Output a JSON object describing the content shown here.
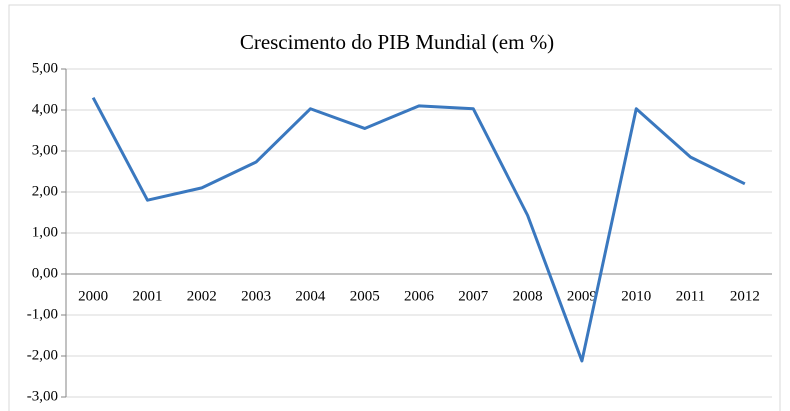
{
  "chart_data": {
    "type": "line",
    "title": "Crescimento do PIB Mundial (em %)",
    "categories": [
      "2000",
      "2001",
      "2002",
      "2003",
      "2004",
      "2005",
      "2006",
      "2007",
      "2008",
      "2009",
      "2010",
      "2011",
      "2012"
    ],
    "values": [
      4.3,
      1.8,
      2.1,
      2.73,
      4.03,
      3.55,
      4.1,
      4.03,
      1.43,
      -2.12,
      4.03,
      2.85,
      2.2
    ],
    "color": "#3a78bf",
    "ylim": [
      -3,
      5
    ],
    "yticks": [
      {
        "value": -3,
        "label": "-3,00"
      },
      {
        "value": -2,
        "label": "-2,00"
      },
      {
        "value": -1,
        "label": "-1,00"
      },
      {
        "value": 0,
        "label": "0,00"
      },
      {
        "value": 1,
        "label": "1,00"
      },
      {
        "value": 2,
        "label": "2,00"
      },
      {
        "value": 3,
        "label": "3,00"
      },
      {
        "value": 4,
        "label": "4,00"
      },
      {
        "value": 5,
        "label": "5,00"
      }
    ],
    "grid": true
  }
}
